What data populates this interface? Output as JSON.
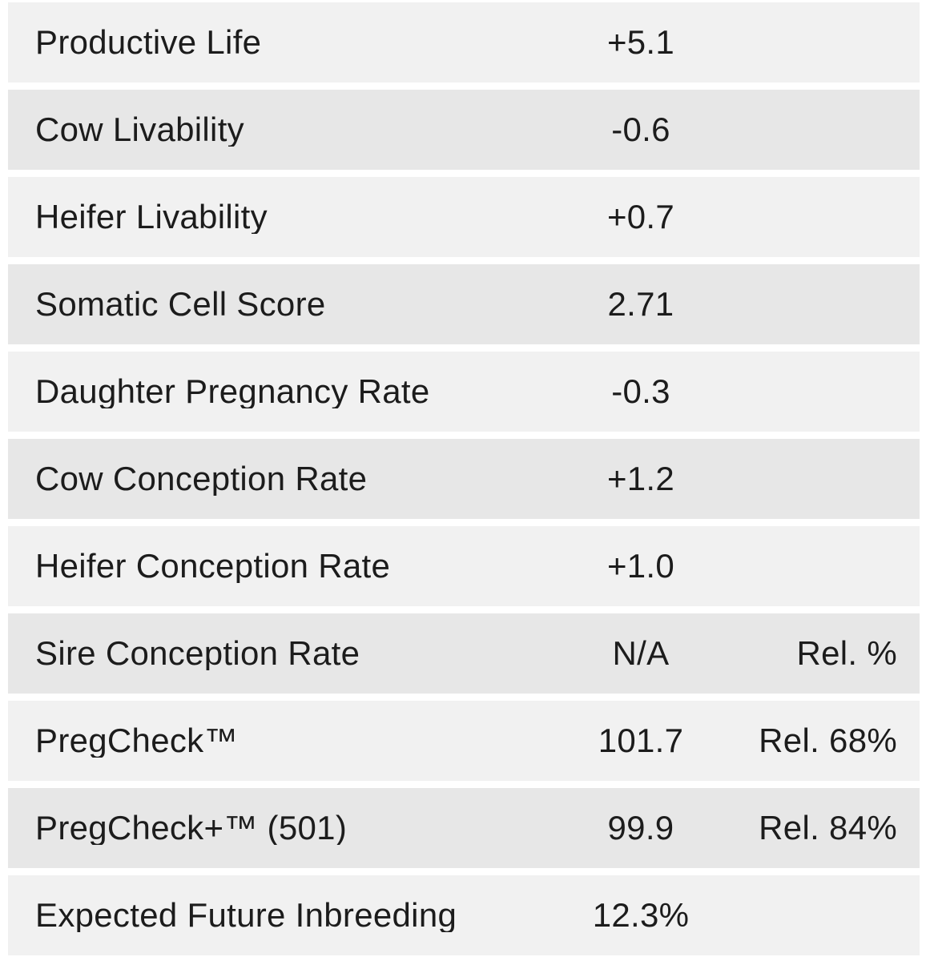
{
  "colors": {
    "background": "#ffffff",
    "row_light": "#f1f1f1",
    "row_dark": "#e7e7e7",
    "text": "#1c1c1c"
  },
  "table": {
    "rows": [
      {
        "label": "Productive Life",
        "value": "+5.1",
        "rel": ""
      },
      {
        "label": "Cow Livability",
        "value": "-0.6",
        "rel": ""
      },
      {
        "label": "Heifer Livability",
        "value": "+0.7",
        "rel": ""
      },
      {
        "label": "Somatic Cell Score",
        "value": "2.71",
        "rel": ""
      },
      {
        "label": "Daughter Pregnancy Rate",
        "value": "-0.3",
        "rel": ""
      },
      {
        "label": "Cow Conception Rate",
        "value": "+1.2",
        "rel": ""
      },
      {
        "label": "Heifer Conception Rate",
        "value": "+1.0",
        "rel": ""
      },
      {
        "label": "Sire Conception Rate",
        "value": "N/A",
        "rel": "Rel. %"
      },
      {
        "label": "PregCheck™",
        "value": "101.7",
        "rel": "Rel. 68%"
      },
      {
        "label": "PregCheck+™ (501)",
        "value": "99.9",
        "rel": "Rel. 84%"
      },
      {
        "label": "Expected Future Inbreeding",
        "value": "12.3%",
        "rel": ""
      }
    ]
  }
}
